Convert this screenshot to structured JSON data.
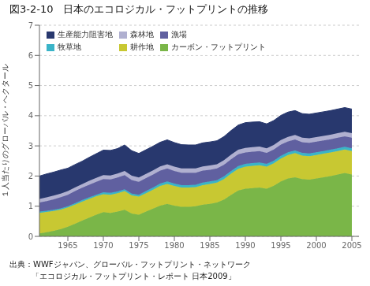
{
  "chart_data": {
    "type": "area",
    "stacked": true,
    "title": "図3-2-10　日本のエコロジカル・フットプリントの推移",
    "ylabel": "１人当たりのグローバル・ヘクタール",
    "annotations": [
      "出典：WWFジャパン、グローバル・フットプリント・ネットワーク",
      "「エコロジカル・フットプリント・レポート 日本2009」"
    ],
    "x": [
      1961,
      1962,
      1963,
      1964,
      1965,
      1966,
      1967,
      1968,
      1969,
      1970,
      1971,
      1972,
      1973,
      1974,
      1975,
      1976,
      1977,
      1978,
      1979,
      1980,
      1981,
      1982,
      1983,
      1984,
      1985,
      1986,
      1987,
      1988,
      1989,
      1990,
      1991,
      1992,
      1993,
      1994,
      1995,
      1996,
      1997,
      1998,
      1999,
      2000,
      2001,
      2002,
      2003,
      2004,
      2005
    ],
    "xlim": [
      1961,
      2006
    ],
    "xticks": [
      1965,
      1970,
      1975,
      1980,
      1985,
      1990,
      1995,
      2000,
      2005
    ],
    "ylim": [
      0,
      7
    ],
    "yticks": [
      0,
      1,
      2,
      3,
      4,
      5,
      6,
      7
    ],
    "grid": true,
    "legend": "upper left",
    "series": [
      {
        "name": "カーボン・フットプリント",
        "color": "#7ab648",
        "values": [
          0.1,
          0.14,
          0.18,
          0.24,
          0.32,
          0.42,
          0.52,
          0.62,
          0.72,
          0.8,
          0.78,
          0.82,
          0.88,
          0.76,
          0.72,
          0.82,
          0.92,
          1.02,
          1.08,
          1.02,
          0.98,
          0.98,
          1.0,
          1.05,
          1.08,
          1.12,
          1.22,
          1.38,
          1.52,
          1.58,
          1.6,
          1.62,
          1.58,
          1.68,
          1.82,
          1.92,
          1.96,
          1.9,
          1.88,
          1.92,
          1.96,
          2.0,
          2.05,
          2.1,
          2.05
        ]
      },
      {
        "name": "耕作地",
        "color": "#c8c832",
        "values": [
          0.68,
          0.67,
          0.66,
          0.65,
          0.64,
          0.63,
          0.63,
          0.62,
          0.61,
          0.6,
          0.6,
          0.61,
          0.62,
          0.6,
          0.6,
          0.61,
          0.63,
          0.65,
          0.66,
          0.65,
          0.64,
          0.64,
          0.63,
          0.65,
          0.66,
          0.66,
          0.68,
          0.7,
          0.72,
          0.73,
          0.74,
          0.74,
          0.73,
          0.74,
          0.76,
          0.78,
          0.8,
          0.78,
          0.78,
          0.78,
          0.78,
          0.78,
          0.78,
          0.78,
          0.78
        ]
      },
      {
        "name": "牧草地",
        "color": "#3ab4c8",
        "values": [
          0.04,
          0.04,
          0.04,
          0.04,
          0.04,
          0.05,
          0.05,
          0.05,
          0.05,
          0.06,
          0.06,
          0.06,
          0.06,
          0.06,
          0.06,
          0.07,
          0.07,
          0.08,
          0.08,
          0.08,
          0.08,
          0.08,
          0.08,
          0.08,
          0.08,
          0.08,
          0.09,
          0.09,
          0.09,
          0.09,
          0.09,
          0.09,
          0.09,
          0.09,
          0.09,
          0.09,
          0.09,
          0.09,
          0.09,
          0.09,
          0.09,
          0.09,
          0.09,
          0.09,
          0.09
        ]
      },
      {
        "name": "漁場",
        "color": "#6060a0",
        "values": [
          0.3,
          0.32,
          0.35,
          0.37,
          0.38,
          0.4,
          0.41,
          0.42,
          0.43,
          0.44,
          0.45,
          0.46,
          0.47,
          0.45,
          0.43,
          0.43,
          0.43,
          0.43,
          0.43,
          0.42,
          0.41,
          0.41,
          0.4,
          0.4,
          0.39,
          0.39,
          0.39,
          0.39,
          0.39,
          0.38,
          0.38,
          0.38,
          0.37,
          0.37,
          0.37,
          0.36,
          0.36,
          0.35,
          0.35,
          0.35,
          0.35,
          0.35,
          0.35,
          0.35,
          0.35
        ]
      },
      {
        "name": "森林地",
        "color": "#b0b0d0",
        "values": [
          0.12,
          0.12,
          0.12,
          0.12,
          0.12,
          0.12,
          0.12,
          0.13,
          0.13,
          0.13,
          0.13,
          0.13,
          0.14,
          0.14,
          0.14,
          0.14,
          0.14,
          0.14,
          0.14,
          0.14,
          0.14,
          0.14,
          0.14,
          0.14,
          0.14,
          0.14,
          0.15,
          0.15,
          0.15,
          0.15,
          0.15,
          0.15,
          0.15,
          0.15,
          0.15,
          0.15,
          0.15,
          0.15,
          0.15,
          0.15,
          0.15,
          0.15,
          0.15,
          0.15,
          0.15
        ]
      },
      {
        "name": "生産能力阻害地",
        "color": "#28386e",
        "values": [
          0.76,
          0.78,
          0.78,
          0.78,
          0.76,
          0.76,
          0.76,
          0.78,
          0.8,
          0.83,
          0.83,
          0.83,
          0.86,
          0.83,
          0.8,
          0.8,
          0.8,
          0.8,
          0.81,
          0.8,
          0.79,
          0.78,
          0.78,
          0.78,
          0.78,
          0.78,
          0.78,
          0.8,
          0.82,
          0.84,
          0.83,
          0.82,
          0.81,
          0.81,
          0.82,
          0.82,
          0.81,
          0.8,
          0.8,
          0.8,
          0.8,
          0.8,
          0.8,
          0.8,
          0.8
        ]
      }
    ]
  }
}
